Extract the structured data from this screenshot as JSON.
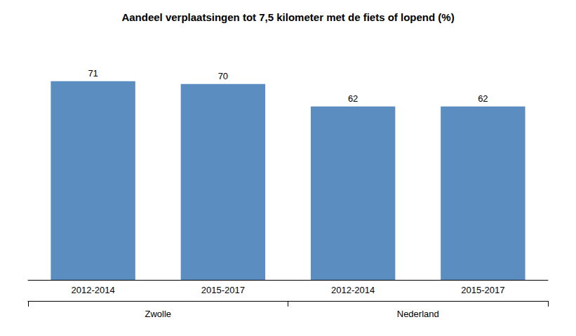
{
  "chart_data": {
    "type": "bar",
    "title": "Aandeel verplaatsingen tot 7,5 kilometer met de fiets of lopend (%)",
    "groups": [
      {
        "label": "Zwolle",
        "categories": [
          "2012-2014",
          "2015-2017"
        ],
        "values": [
          71,
          70
        ]
      },
      {
        "label": "Nederland",
        "categories": [
          "2012-2014",
          "2015-2017"
        ],
        "values": [
          62,
          62
        ]
      }
    ],
    "color": "#5b8dc0",
    "ylim": [
      0,
      85
    ],
    "grid": false,
    "tick_labels": "x",
    "data_labels": true
  }
}
